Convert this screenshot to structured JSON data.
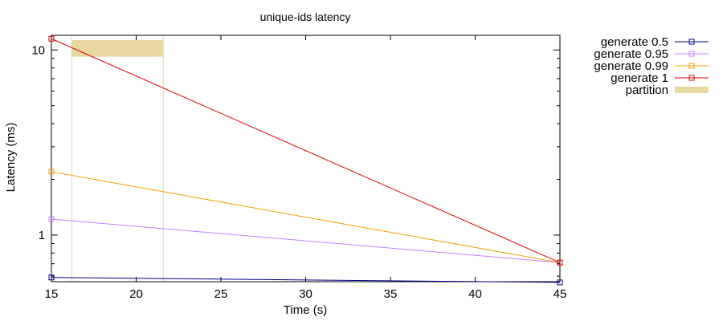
{
  "chart_data": {
    "type": "line",
    "title": "unique-ids latency",
    "xlabel": "Time (s)",
    "ylabel": "Latency (ms)",
    "xlim": [
      15,
      45
    ],
    "ylim": [
      0.56,
      12
    ],
    "yscale": "log",
    "xticks": [
      15,
      20,
      25,
      30,
      35,
      40,
      45
    ],
    "yticks": [
      1,
      10
    ],
    "legend_position": "outside-right",
    "grid": false,
    "series": [
      {
        "name": "generate 0.5",
        "color": "#00008b",
        "x": [
          15,
          45
        ],
        "y": [
          0.59,
          0.555
        ]
      },
      {
        "name": "generate 0.95",
        "color": "#c080ff",
        "x": [
          15,
          45
        ],
        "y": [
          1.22,
          0.71
        ]
      },
      {
        "name": "generate 0.99",
        "color": "#f0a000",
        "x": [
          15,
          45
        ],
        "y": [
          2.2,
          0.71
        ]
      },
      {
        "name": "generate 1",
        "color": "#e00000",
        "x": [
          15,
          45
        ],
        "y": [
          11.5,
          0.71
        ]
      }
    ],
    "partition": {
      "name": "partition",
      "color": "#e8d9a0",
      "x_start": 16.2,
      "x_end": 21.6,
      "y_low": 9.2,
      "y_high": 11.3
    }
  }
}
